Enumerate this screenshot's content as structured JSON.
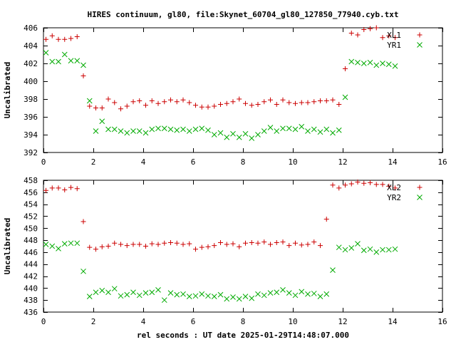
{
  "chart_data": [
    {
      "type": "scatter",
      "title": "HIRES continuum, gl80, file:Skynet_60704_gl80_127850_77940.cyb.txt",
      "xlabel": "",
      "ylabel": "Uncalibrated",
      "xlim": [
        0,
        16
      ],
      "ylim": [
        392,
        406
      ],
      "xticks": [
        0,
        2,
        4,
        6,
        8,
        10,
        12,
        14,
        16
      ],
      "yticks": [
        392,
        394,
        396,
        398,
        400,
        402,
        404,
        406
      ],
      "legend_position": "top-right",
      "series": [
        {
          "name": "XL1",
          "marker": "plus",
          "color": "#cc0000",
          "x": [
            0.1,
            0.35,
            0.6,
            0.85,
            1.1,
            1.35,
            1.6,
            1.85,
            2.1,
            2.35,
            2.6,
            2.85,
            3.1,
            3.35,
            3.6,
            3.85,
            4.1,
            4.35,
            4.6,
            4.85,
            5.1,
            5.35,
            5.6,
            5.85,
            6.1,
            6.35,
            6.6,
            6.85,
            7.1,
            7.35,
            7.6,
            7.85,
            8.1,
            8.35,
            8.6,
            8.85,
            9.1,
            9.35,
            9.6,
            9.85,
            10.1,
            10.35,
            10.6,
            10.85,
            11.1,
            11.35,
            11.6,
            11.85,
            12.1,
            12.35,
            12.6,
            12.85,
            13.1,
            13.35,
            13.6,
            13.85,
            14.1
          ],
          "y": [
            404.7,
            405.1,
            404.7,
            404.7,
            404.8,
            405.0,
            400.6,
            397.2,
            397.0,
            397.0,
            398.0,
            397.6,
            396.9,
            397.2,
            397.7,
            397.8,
            397.3,
            397.8,
            397.5,
            397.7,
            397.9,
            397.7,
            397.9,
            397.6,
            397.3,
            397.1,
            397.1,
            397.2,
            397.4,
            397.5,
            397.7,
            398.0,
            397.5,
            397.3,
            397.4,
            397.7,
            397.9,
            397.4,
            397.9,
            397.6,
            397.5,
            397.6,
            397.6,
            397.7,
            397.8,
            397.8,
            397.9,
            397.4,
            401.4,
            405.4,
            405.2,
            405.8,
            405.9,
            406.0,
            404.9,
            405.1,
            404.9
          ],
          "x_trim": 57
        },
        {
          "name": "YR1",
          "marker": "cross",
          "color": "#00aa00",
          "x": [
            0.1,
            0.35,
            0.6,
            0.85,
            1.1,
            1.35,
            1.6,
            1.85,
            2.1,
            2.35,
            2.6,
            2.85,
            3.1,
            3.35,
            3.6,
            3.85,
            4.1,
            4.35,
            4.6,
            4.85,
            5.1,
            5.35,
            5.6,
            5.85,
            6.1,
            6.35,
            6.6,
            6.85,
            7.1,
            7.35,
            7.6,
            7.85,
            8.1,
            8.35,
            8.6,
            8.85,
            9.1,
            9.35,
            9.6,
            9.85,
            10.1,
            10.35,
            10.6,
            10.85,
            11.1,
            11.35,
            11.6,
            11.85,
            12.1,
            12.35,
            12.6,
            12.85,
            13.1,
            13.35,
            13.6,
            13.85,
            14.1
          ],
          "y": [
            403.2,
            402.2,
            402.2,
            403.0,
            402.3,
            402.3,
            401.8,
            397.8,
            394.4,
            395.5,
            394.6,
            394.6,
            394.4,
            394.2,
            394.4,
            394.4,
            394.2,
            394.6,
            394.7,
            394.7,
            394.6,
            394.5,
            394.6,
            394.4,
            394.6,
            394.7,
            394.5,
            394.0,
            394.2,
            393.7,
            394.1,
            393.7,
            394.1,
            393.6,
            394.0,
            394.4,
            394.8,
            394.4,
            394.7,
            394.7,
            394.6,
            394.9,
            394.4,
            394.6,
            394.3,
            394.6,
            394.2,
            394.5,
            398.2,
            402.2,
            402.1,
            402.0,
            402.1,
            401.8,
            402.0,
            401.9,
            401.7
          ],
          "x_trim": 57
        }
      ]
    },
    {
      "type": "scatter",
      "title": "",
      "xlabel": "rel seconds : UT date 2025-01-29T14:48:07.000",
      "ylabel": "Uncalibrated",
      "xlim": [
        0,
        16
      ],
      "ylim": [
        436,
        458
      ],
      "xticks": [
        0,
        2,
        4,
        6,
        8,
        10,
        12,
        14,
        16
      ],
      "yticks": [
        436,
        438,
        440,
        442,
        444,
        446,
        448,
        450,
        452,
        454,
        456,
        458
      ],
      "legend_position": "top-right",
      "series": [
        {
          "name": "XL2",
          "marker": "plus",
          "color": "#cc0000",
          "x": [
            0.1,
            0.35,
            0.6,
            0.85,
            1.1,
            1.35,
            1.6,
            1.85,
            2.1,
            2.35,
            2.6,
            2.85,
            3.1,
            3.35,
            3.6,
            3.85,
            4.1,
            4.35,
            4.6,
            4.85,
            5.1,
            5.35,
            5.6,
            5.85,
            6.1,
            6.35,
            6.6,
            6.85,
            7.1,
            7.35,
            7.6,
            7.85,
            8.1,
            8.35,
            8.6,
            8.85,
            9.1,
            9.35,
            9.6,
            9.85,
            10.1,
            10.35,
            10.6,
            10.85,
            11.1,
            11.35,
            11.6,
            11.85,
            12.1,
            12.35,
            12.6,
            12.85,
            13.1,
            13.35,
            13.6,
            13.85,
            14.1
          ],
          "y": [
            456.3,
            456.7,
            456.7,
            456.4,
            456.8,
            456.6,
            451.1,
            446.8,
            446.5,
            446.9,
            447.0,
            447.5,
            447.3,
            447.1,
            447.3,
            447.3,
            447.0,
            447.4,
            447.3,
            447.5,
            447.6,
            447.5,
            447.3,
            447.4,
            446.5,
            446.8,
            446.9,
            447.1,
            447.6,
            447.3,
            447.4,
            446.9,
            447.5,
            447.6,
            447.5,
            447.7,
            447.3,
            447.6,
            447.7,
            447.1,
            447.5,
            447.2,
            447.3,
            447.7,
            447.1,
            451.5,
            457.2,
            456.7,
            457.2,
            457.4,
            457.7,
            457.5,
            457.6,
            457.3,
            457.3,
            457.0,
            456.7
          ],
          "x_trim": 57
        },
        {
          "name": "YR2",
          "marker": "cross",
          "color": "#00aa00",
          "x": [
            0.1,
            0.35,
            0.6,
            0.85,
            1.1,
            1.35,
            1.6,
            1.85,
            2.1,
            2.35,
            2.6,
            2.85,
            3.1,
            3.35,
            3.6,
            3.85,
            4.1,
            4.35,
            4.6,
            4.85,
            5.1,
            5.35,
            5.6,
            5.85,
            6.1,
            6.35,
            6.6,
            6.85,
            7.1,
            7.35,
            7.6,
            7.85,
            8.1,
            8.35,
            8.6,
            8.85,
            9.1,
            9.35,
            9.6,
            9.85,
            10.1,
            10.35,
            10.6,
            10.85,
            11.1,
            11.35,
            11.6,
            11.85,
            12.1,
            12.35,
            12.6,
            12.85,
            13.1,
            13.35,
            13.6,
            13.85,
            14.1
          ],
          "y": [
            447.3,
            447.0,
            446.6,
            447.4,
            447.5,
            447.5,
            442.8,
            438.6,
            439.3,
            439.6,
            439.3,
            439.9,
            438.7,
            438.9,
            439.3,
            438.8,
            439.2,
            439.3,
            439.7,
            438.0,
            439.2,
            438.9,
            439.0,
            438.6,
            438.7,
            439.0,
            438.7,
            438.6,
            438.9,
            438.2,
            438.5,
            438.2,
            438.6,
            438.3,
            439.0,
            438.8,
            439.2,
            439.3,
            439.7,
            439.2,
            438.8,
            439.4,
            439.0,
            439.1,
            438.6,
            439.0,
            443.0,
            446.8,
            446.4,
            446.7,
            447.4,
            446.3,
            446.5,
            446.0,
            446.4,
            446.4,
            446.5
          ],
          "x_trim": 57
        }
      ]
    }
  ]
}
